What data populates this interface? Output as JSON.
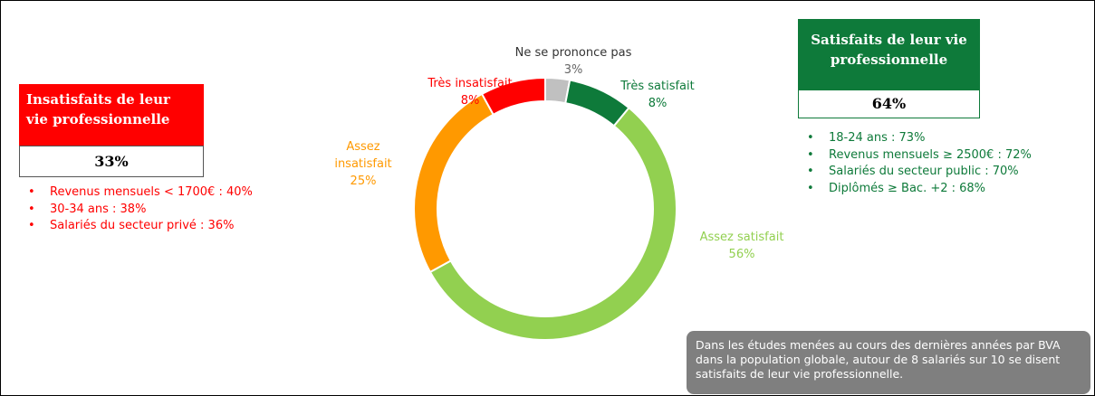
{
  "chart_data": {
    "type": "donut",
    "categories": [
      "Ne se prononce pas",
      "Très satisfait",
      "Assez satisfait",
      "Assez insatisfait",
      "Très insatisfait"
    ],
    "values": [
      3,
      8,
      56,
      25,
      8
    ],
    "value_labels": [
      "3%",
      "8%",
      "56%",
      "25%",
      "8%"
    ],
    "colors": [
      "#c0c0c0",
      "#0e7a3a",
      "#92d050",
      "#ff9900",
      "#ff0000"
    ]
  },
  "left_panel": {
    "title": "Insatisfaits de leur vie professionnelle",
    "value": "33%",
    "items": [
      "Revenus mensuels < 1700€ : 40%",
      "30-34 ans : 38%",
      "Salariés du secteur privé : 36%"
    ]
  },
  "right_panel": {
    "title": "Satisfaits de leur vie professionnelle",
    "value": "64%",
    "items": [
      "18-24 ans : 73%",
      "Revenus mensuels ≥ 2500€ : 72%",
      "Salariés du secteur public : 70%",
      "Diplômés ≥ Bac. +2 : 68%"
    ]
  },
  "note": "Dans les études menées au cours des dernières années par BVA dans la population globale, autour de 8 salariés sur 10 se disent satisfaits de leur vie professionnelle."
}
